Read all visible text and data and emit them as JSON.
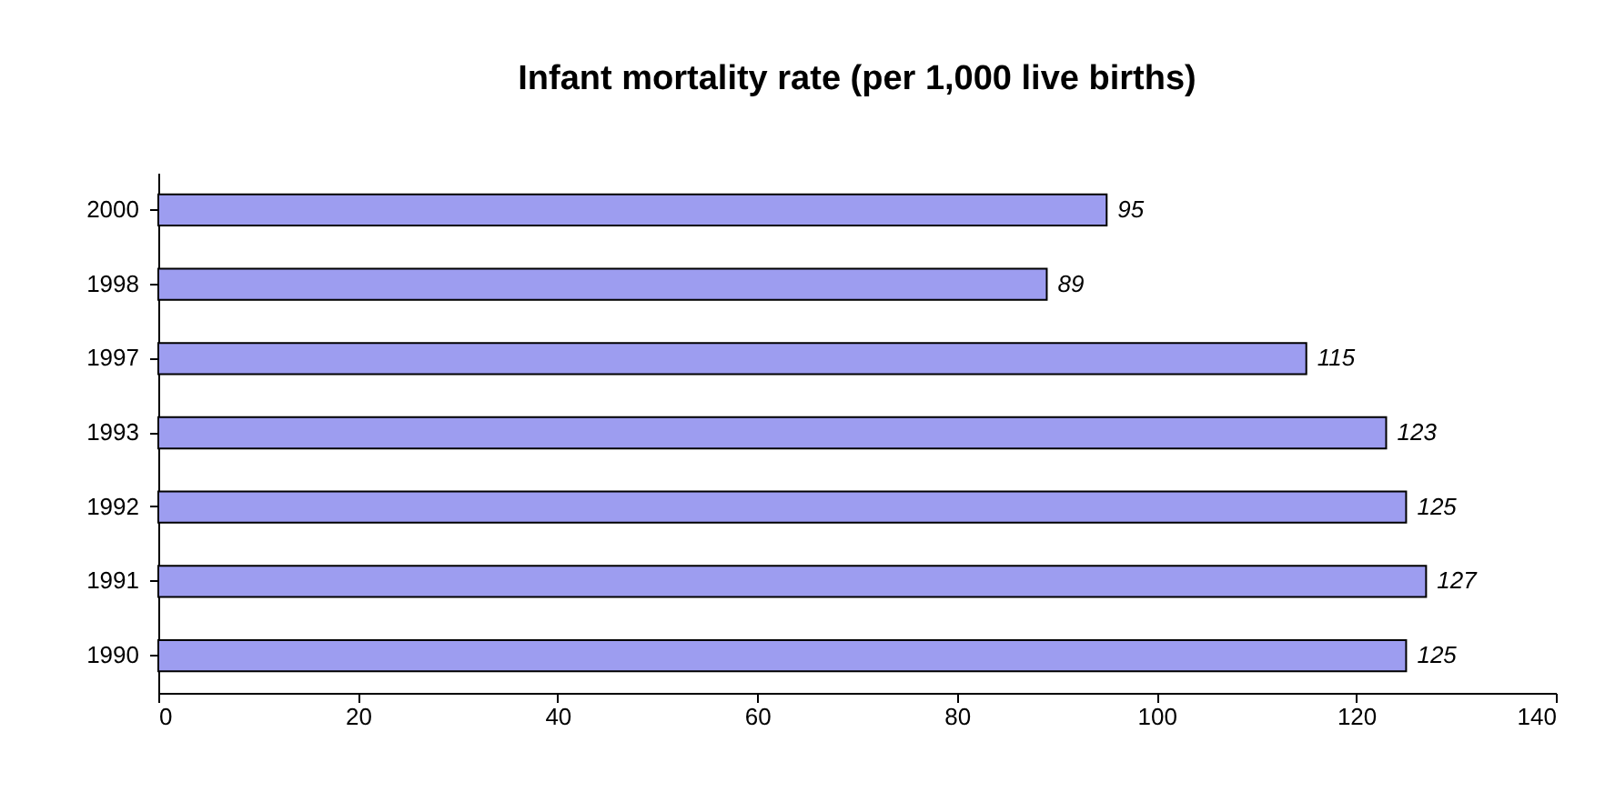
{
  "chart_data": {
    "type": "bar",
    "orientation": "horizontal",
    "title": "Infant mortality rate (per 1,000 live births)",
    "categories": [
      "2000",
      "1998",
      "1997",
      "1993",
      "1992",
      "1991",
      "1990"
    ],
    "values": [
      95,
      89,
      115,
      123,
      125,
      127,
      125
    ],
    "color": "#9d9df0",
    "xlim": [
      0,
      140
    ],
    "xticks": [
      0,
      20,
      40,
      60,
      80,
      100,
      120,
      140
    ],
    "data_labels": true
  }
}
